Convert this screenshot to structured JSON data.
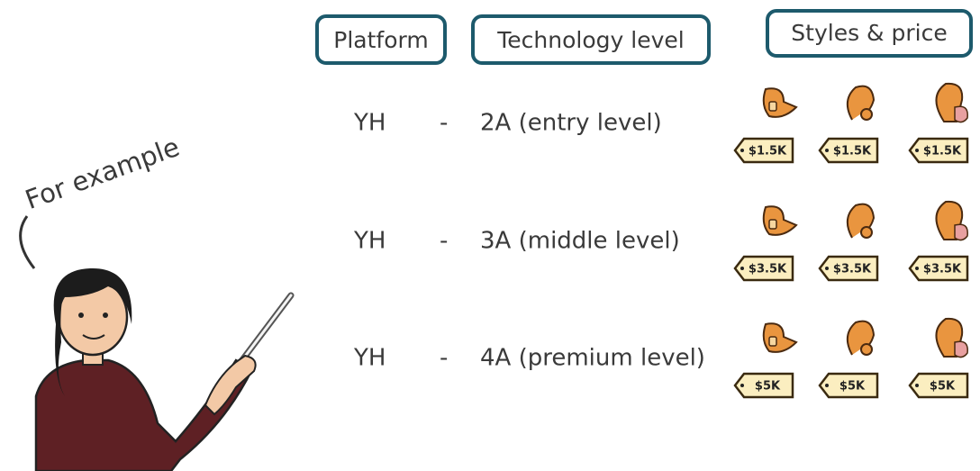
{
  "headers": [
    "Platform",
    "Technology level",
    "Styles & price"
  ],
  "annotation": "For example",
  "rows": [
    {
      "platform": "YH",
      "separator": "-",
      "level": "2A (entry level)",
      "prices": [
        "$1.5K",
        "$1.5K",
        "$1.5K"
      ]
    },
    {
      "platform": "YH",
      "separator": "-",
      "level": "3A (middle level)",
      "prices": [
        "$3.5K",
        "$3.5K",
        "$3.5K"
      ]
    },
    {
      "platform": "YH",
      "separator": "-",
      "level": "4A (premium level)",
      "prices": [
        "$5K",
        "$5K",
        "$5K"
      ]
    }
  ]
}
